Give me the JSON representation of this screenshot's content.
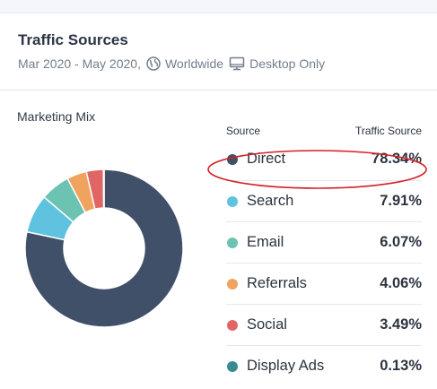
{
  "header": {
    "title": "Traffic Sources",
    "date_range": "Mar 2020 - May 2020,",
    "region": "Worldwide",
    "device": "Desktop Only"
  },
  "section_label": "Marketing Mix",
  "table": {
    "col_source": "Source",
    "col_share": "Traffic Source"
  },
  "rows": [
    {
      "name": "Direct",
      "pct": "78.34%",
      "color": "#3f5068"
    },
    {
      "name": "Search",
      "pct": "7.91%",
      "color": "#5fc3df"
    },
    {
      "name": "Email",
      "pct": "6.07%",
      "color": "#6cc3b1"
    },
    {
      "name": "Referrals",
      "pct": "4.06%",
      "color": "#f0a35e"
    },
    {
      "name": "Social",
      "pct": "3.49%",
      "color": "#e06666"
    },
    {
      "name": "Display Ads",
      "pct": "0.13%",
      "color": "#3a8a93"
    }
  ],
  "chart_data": {
    "type": "pie",
    "categories": [
      "Direct",
      "Search",
      "Email",
      "Referrals",
      "Social",
      "Display Ads"
    ],
    "values": [
      78.34,
      7.91,
      6.07,
      4.06,
      3.49,
      0.13
    ],
    "colors": [
      "#3f5068",
      "#5fc3df",
      "#6cc3b1",
      "#f0a35e",
      "#e06666",
      "#3a8a93"
    ],
    "title": "Marketing Mix",
    "style": "donut"
  },
  "annotation": {
    "target": "Direct",
    "color": "#d61f26",
    "shape": "ellipse"
  }
}
